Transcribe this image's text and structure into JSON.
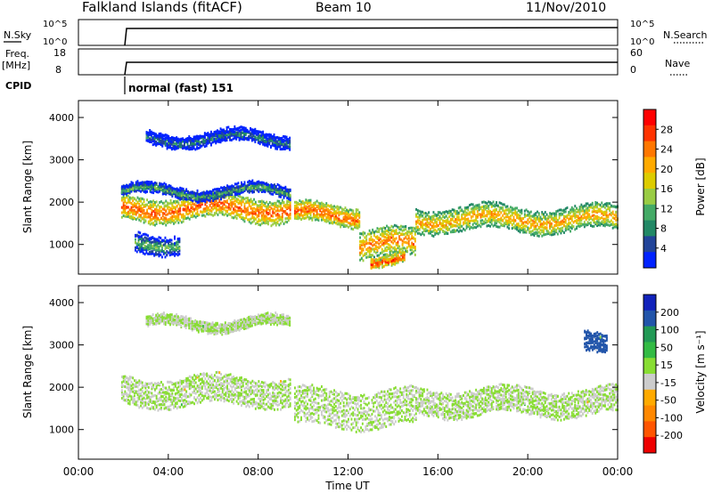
{
  "header": {
    "title": "Falkland Islands (fitACF)",
    "beam": "Beam 10",
    "date": "11/Nov/2010"
  },
  "noise_panel": {
    "left_label": "N.Sky",
    "left_ticks": [
      "10^5",
      "10^0"
    ],
    "right_ticks": [
      "10^5",
      "10^0"
    ],
    "right_label": "N.Search"
  },
  "freq_panel": {
    "left_label_1": "Freq.",
    "left_label_2": "[MHz]",
    "left_ticks": [
      "18",
      "8"
    ],
    "right_ticks": [
      "60",
      "0"
    ],
    "right_label": "Nave"
  },
  "cpid": {
    "label": "CPID",
    "value": "normal (fast) 151"
  },
  "x_axis": {
    "label": "Time UT",
    "ticks": [
      "00:00",
      "04:00",
      "08:00",
      "12:00",
      "16:00",
      "20:00",
      "00:00"
    ]
  },
  "chart_data": [
    {
      "type": "heatmap",
      "title": "",
      "xlabel": "Time UT",
      "ylabel": "Slant Range [km]",
      "x_ticks": [
        "00:00",
        "04:00",
        "08:00",
        "12:00",
        "16:00",
        "20:00",
        "00:00"
      ],
      "y_ticks": [
        "1000",
        "2000",
        "3000",
        "4000"
      ],
      "colorbar": {
        "label": "Power [dB]",
        "ticks": [
          "28",
          "24",
          "20",
          "16",
          "12",
          "8",
          "4"
        ],
        "colors": [
          "#ff0000",
          "#ff3300",
          "#ff7700",
          "#ffaa00",
          "#ddcc00",
          "#99cc44",
          "#44aa66",
          "#228866",
          "#224499",
          "#0022ff"
        ]
      },
      "bands": [
        {
          "start_hour": 1.9,
          "end_hour": 9.4,
          "range_km": 1850,
          "thickness_km": 500,
          "power_db": 26
        },
        {
          "start_hour": 9.6,
          "end_hour": 12.5,
          "range_km": 1700,
          "thickness_km": 400,
          "power_db": 26
        },
        {
          "start_hour": 12.5,
          "end_hour": 15.0,
          "range_km": 1000,
          "thickness_km": 600,
          "power_db": 24
        },
        {
          "start_hour": 15.0,
          "end_hour": 24.0,
          "range_km": 1600,
          "thickness_km": 500,
          "power_db": 22
        },
        {
          "start_hour": 1.9,
          "end_hour": 9.4,
          "range_km": 2250,
          "thickness_km": 200,
          "power_db": 12
        },
        {
          "start_hour": 3.0,
          "end_hour": 9.4,
          "range_km": 3500,
          "thickness_km": 250,
          "power_db": 8
        },
        {
          "start_hour": 2.5,
          "end_hour": 4.5,
          "range_km": 1050,
          "thickness_km": 400,
          "power_db": 12
        },
        {
          "start_hour": 13.0,
          "end_hour": 14.5,
          "range_km": 650,
          "thickness_km": 200,
          "power_db": 28
        }
      ]
    },
    {
      "type": "heatmap",
      "title": "",
      "xlabel": "Time UT",
      "ylabel": "Slant Range [km]",
      "x_ticks": [
        "00:00",
        "04:00",
        "08:00",
        "12:00",
        "16:00",
        "20:00",
        "00:00"
      ],
      "y_ticks": [
        "1000",
        "2000",
        "3000",
        "4000"
      ],
      "colorbar": {
        "label": "Velocity [m s⁻¹]",
        "ticks": [
          "200",
          "100",
          "50",
          "15",
          "-15",
          "-50",
          "-100",
          "-200"
        ],
        "colors": [
          "#1122bb",
          "#2255aa",
          "#229955",
          "#33bb44",
          "#88dd33",
          "#cccccc",
          "#ffaa00",
          "#ff8800",
          "#ff5500",
          "#ee0000"
        ]
      },
      "bands": [
        {
          "start_hour": 1.9,
          "end_hour": 9.4,
          "range_km": 1900,
          "thickness_km": 600,
          "velocity": 0
        },
        {
          "start_hour": 9.6,
          "end_hour": 15.0,
          "range_km": 1500,
          "thickness_km": 800,
          "velocity": 0
        },
        {
          "start_hour": 15.0,
          "end_hour": 24.0,
          "range_km": 1650,
          "thickness_km": 550,
          "velocity": 0
        },
        {
          "start_hour": 3.0,
          "end_hour": 9.4,
          "range_km": 3500,
          "thickness_km": 200,
          "velocity": 0
        },
        {
          "start_hour": 22.5,
          "end_hour": 23.5,
          "range_km": 3000,
          "thickness_km": 400,
          "velocity": 200
        }
      ]
    }
  ]
}
